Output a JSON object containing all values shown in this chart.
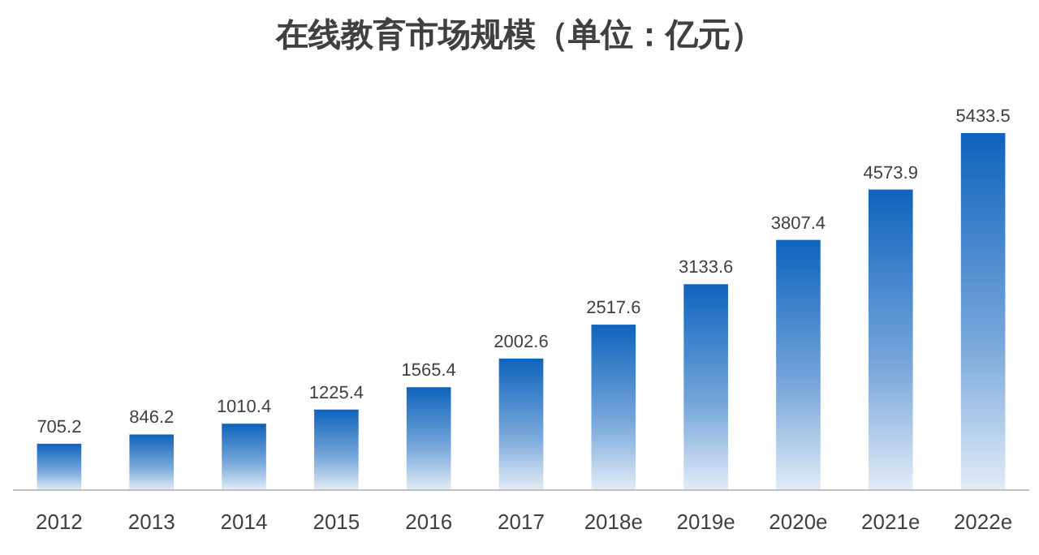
{
  "chart_data": {
    "type": "bar",
    "title": "在线教育市场规模（单位：亿元）",
    "categories": [
      "2012",
      "2013",
      "2014",
      "2015",
      "2016",
      "2017",
      "2018e",
      "2019e",
      "2020e",
      "2021e",
      "2022e"
    ],
    "values": [
      705.2,
      846.2,
      1010.4,
      1225.4,
      1565.4,
      2002.6,
      2517.6,
      3133.6,
      3807.4,
      4573.9,
      5433.5
    ],
    "color": "#0e63bd",
    "data_labels": true
  }
}
